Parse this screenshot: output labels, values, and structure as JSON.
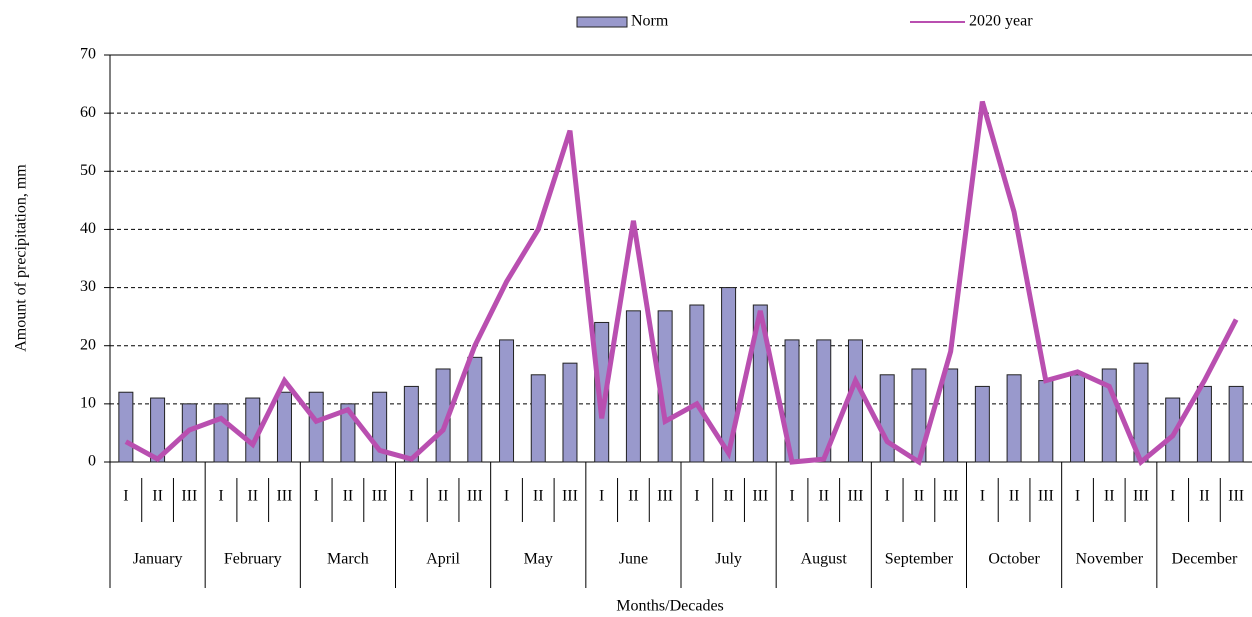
{
  "chart_data": {
    "type": "bar",
    "y_label": "Amount of precipitation, mm",
    "x_label": "Months/Decades",
    "categories": [
      "I",
      "II",
      "III",
      "I",
      "II",
      "III",
      "I",
      "II",
      "III",
      "I",
      "II",
      "III",
      "I",
      "II",
      "III",
      "I",
      "II",
      "III",
      "I",
      "II",
      "III",
      "I",
      "II",
      "III",
      "I",
      "II",
      "III",
      "I",
      "II",
      "III",
      "I",
      "II",
      "III",
      "I",
      "II",
      "III"
    ],
    "months": [
      "January",
      "February",
      "March",
      "April",
      "May",
      "June",
      "July",
      "August",
      "September",
      "October",
      "November",
      "December"
    ],
    "series": [
      {
        "name": "Norm",
        "type": "bar",
        "color": "#9999cc",
        "values": [
          12,
          11,
          10,
          10,
          11,
          12,
          12,
          10,
          12,
          13,
          16,
          18,
          21,
          15,
          17,
          24,
          26,
          26,
          27,
          30,
          27,
          21,
          21,
          21,
          15,
          16,
          16,
          13,
          15,
          14,
          15,
          16,
          17,
          11,
          13,
          13
        ]
      },
      {
        "name": "2020 year",
        "type": "line",
        "color": "#b94fb0",
        "values": [
          3.5,
          0.5,
          5.5,
          7.5,
          3,
          14,
          7,
          9,
          2,
          0.5,
          5.5,
          20,
          31,
          40,
          57,
          7.5,
          41.5,
          7,
          10,
          1.5,
          26,
          0,
          0.5,
          14,
          3.5,
          0,
          19,
          62,
          43,
          14,
          15.5,
          13,
          0,
          4.5,
          14,
          24.5
        ]
      }
    ],
    "ylim": [
      0,
      70
    ],
    "yticks": [
      0,
      10,
      20,
      30,
      40,
      50,
      60,
      70
    ],
    "grid": true
  }
}
